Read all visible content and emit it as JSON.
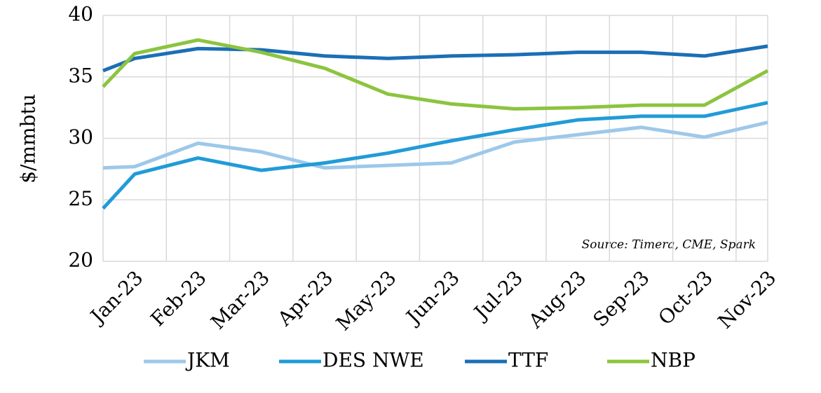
{
  "chart_data": {
    "type": "line",
    "y_label": "$/mmbtu",
    "annotation": "Source: Timera, CME, Spark",
    "categories": [
      null,
      "Jan-23",
      "Feb-23",
      "Mar-23",
      "Apr-23",
      "May-23",
      "Jun-23",
      "Jul-23",
      "Aug-23",
      "Sep-23",
      "Oct-23",
      "Nov-23"
    ],
    "series": [
      {
        "name": "JKM",
        "color": "#9dc8ea",
        "values": [
          27.6,
          27.7,
          29.6,
          28.9,
          27.6,
          27.8,
          28.0,
          29.7,
          30.3,
          30.9,
          30.1,
          31.3
        ]
      },
      {
        "name": "DES NWE",
        "color": "#219bd8",
        "values": [
          24.3,
          27.1,
          28.4,
          27.4,
          28.0,
          28.8,
          29.8,
          30.7,
          31.5,
          31.8,
          31.8,
          32.9
        ]
      },
      {
        "name": "TTF",
        "color": "#1b6fb5",
        "values": [
          35.5,
          36.5,
          37.3,
          37.2,
          36.7,
          36.5,
          36.7,
          36.8,
          37.0,
          37.0,
          36.7,
          37.5
        ]
      },
      {
        "name": "NBP",
        "color": "#8cc43f",
        "values": [
          34.2,
          36.9,
          38.0,
          37.0,
          35.7,
          33.6,
          32.8,
          32.4,
          32.5,
          32.7,
          32.7,
          35.5
        ]
      }
    ],
    "ylim": [
      20,
      40
    ],
    "yticks": [
      20,
      25,
      30,
      35,
      40
    ],
    "grid": true,
    "legend": "bottom"
  }
}
